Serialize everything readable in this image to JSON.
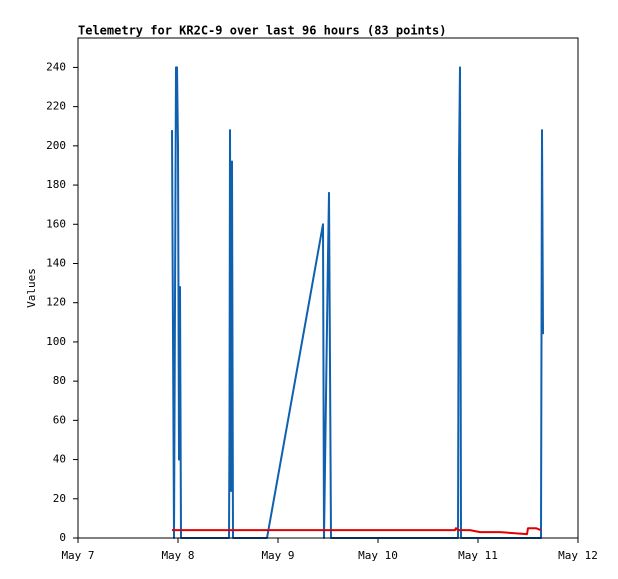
{
  "chart_data": {
    "type": "line",
    "title": "Telemetry for KR2C-9 over last 96 hours (83 points)",
    "ylabel": "Values",
    "xlim": [
      7,
      12
    ],
    "xticks": [
      {
        "value": 7,
        "label": "May 7"
      },
      {
        "value": 8,
        "label": "May 8"
      },
      {
        "value": 9,
        "label": "May 9"
      },
      {
        "value": 10,
        "label": "May 10"
      },
      {
        "value": 11,
        "label": "May 11"
      },
      {
        "value": 12,
        "label": "May 12"
      }
    ],
    "ylim": [
      0,
      255
    ],
    "yticks": [
      0,
      20,
      40,
      60,
      80,
      100,
      120,
      140,
      160,
      180,
      200,
      220,
      240
    ],
    "grid": false,
    "series": [
      {
        "color": "#1060b0",
        "x": [
          7.94,
          7.95,
          7.96,
          7.97,
          7.98,
          7.99,
          8.0,
          8.01,
          8.02,
          8.03,
          8.51,
          8.515,
          8.52,
          8.53,
          8.54,
          8.55,
          8.89,
          9.45,
          9.46,
          9.5,
          9.51,
          9.52,
          9.53,
          10.8,
          10.81,
          10.82,
          10.83,
          11.63,
          11.64,
          11.65
        ],
        "values": [
          208,
          104,
          0,
          120,
          240,
          240,
          200,
          40,
          128,
          0,
          0,
          56,
          208,
          24,
          192,
          0,
          0,
          160,
          0,
          144,
          176,
          88,
          0,
          0,
          192,
          240,
          0,
          0,
          208,
          104
        ]
      },
      {
        "color": "#e00000",
        "x": [
          7.94,
          10.77,
          10.78,
          10.8,
          10.92,
          11.02,
          11.22,
          11.49,
          11.5,
          11.58,
          11.63
        ],
        "values": [
          4,
          4,
          5,
          4,
          4,
          3,
          3,
          2,
          5,
          5,
          4
        ]
      }
    ]
  }
}
